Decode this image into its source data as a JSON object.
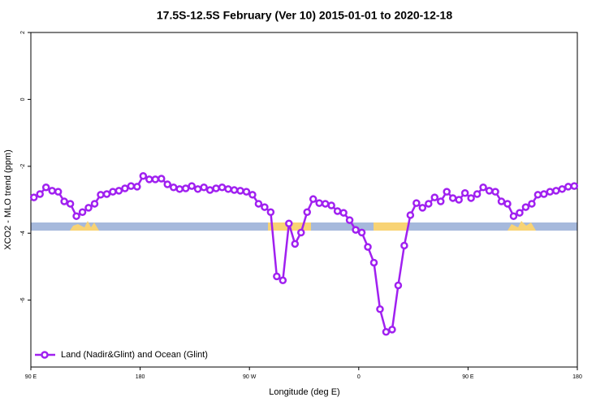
{
  "chart_data": {
    "type": "line",
    "title": "17.5S-12.5S February (Ver 10)   2015-01-01 to 2020-12-18",
    "x_label": "Longitude (deg E)",
    "y_label": "XCO2 - MLO trend (ppm)",
    "x": [
      92.5,
      97.5,
      102.5,
      107.5,
      112.5,
      117.5,
      122.5,
      127.5,
      132.5,
      137.5,
      142.5,
      147.5,
      152.5,
      157.5,
      162.5,
      167.5,
      172.5,
      177.5,
      182.5,
      187.5,
      192.5,
      197.5,
      202.5,
      207.5,
      212.5,
      217.5,
      222.5,
      227.5,
      232.5,
      237.5,
      242.5,
      247.5,
      252.5,
      257.5,
      262.5,
      267.5,
      272.5,
      277.5,
      282.5,
      287.5,
      292.5,
      297.5,
      302.5,
      307.5,
      312.5,
      317.5,
      322.5,
      327.5,
      332.5,
      337.5,
      342.5,
      347.5,
      352.5,
      357.5,
      362.5,
      367.5,
      372.5,
      377.5,
      382.5,
      387.5,
      392.5,
      397.5,
      402.5,
      407.5,
      412.5,
      417.5,
      422.5,
      427.5,
      432.5,
      437.5,
      442.5,
      447.5,
      452.5,
      457.5,
      462.5,
      467.5,
      472.5,
      477.5,
      482.5,
      487.5,
      492.5,
      497.5,
      502.5,
      507.5,
      512.5,
      517.5,
      522.5,
      527.5,
      532.5,
      537.5
    ],
    "series": [
      {
        "name": "Land (Nadir&Glint) and Ocean (Glint)",
        "color": "#a020f0",
        "values": [
          -2.93,
          -2.83,
          -2.63,
          -2.73,
          -2.76,
          -3.05,
          -3.12,
          -3.49,
          -3.37,
          -3.24,
          -3.12,
          -2.85,
          -2.83,
          -2.76,
          -2.73,
          -2.66,
          -2.59,
          -2.61,
          -2.29,
          -2.39,
          -2.39,
          -2.37,
          -2.54,
          -2.63,
          -2.68,
          -2.66,
          -2.59,
          -2.68,
          -2.63,
          -2.71,
          -2.66,
          -2.63,
          -2.68,
          -2.71,
          -2.73,
          -2.76,
          -2.85,
          -3.12,
          -3.22,
          -3.37,
          -5.29,
          -5.41,
          -3.71,
          -4.32,
          -3.98,
          -3.37,
          -2.98,
          -3.1,
          -3.12,
          -3.17,
          -3.34,
          -3.39,
          -3.61,
          -3.9,
          -3.98,
          -4.41,
          -4.88,
          -6.27,
          -6.95,
          -6.88,
          -5.56,
          -4.37,
          -3.46,
          -3.1,
          -3.24,
          -3.12,
          -2.93,
          -3.05,
          -2.76,
          -2.95,
          -3.0,
          -2.8,
          -2.95,
          -2.83,
          -2.63,
          -2.73,
          -2.76,
          -3.05,
          -3.12,
          -3.49,
          -3.39,
          -3.22,
          -3.12,
          -2.85,
          -2.83,
          -2.76,
          -2.73,
          -2.68,
          -2.61,
          -2.59
        ]
      }
    ],
    "xlim": [
      90,
      540
    ],
    "xticks": [
      {
        "value": 90,
        "label": "90 E"
      },
      {
        "value": 180,
        "label": "180"
      },
      {
        "value": 270,
        "label": "90 W"
      },
      {
        "value": 360,
        "label": "0"
      },
      {
        "value": 450,
        "label": "90 E"
      },
      {
        "value": 540,
        "label": "180"
      }
    ],
    "ylim": [
      -8,
      2
    ],
    "yticks": [
      2,
      0,
      -2,
      -4,
      -6
    ],
    "legend": "bottom-left"
  }
}
